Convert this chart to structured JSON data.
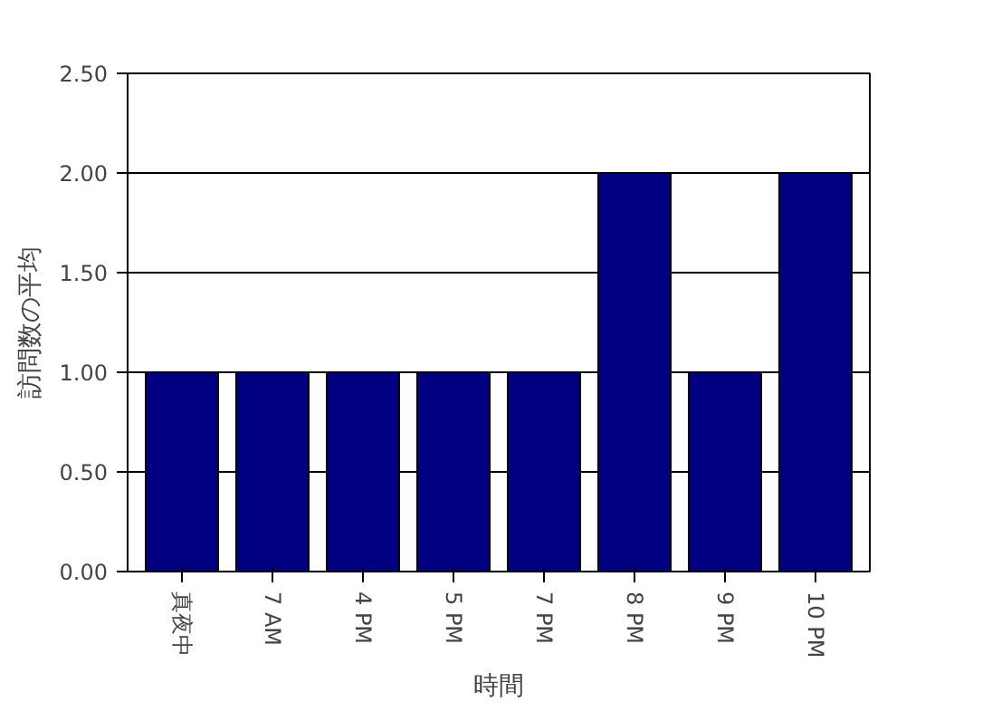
{
  "chart_data": {
    "type": "bar",
    "xlabel": "時間",
    "ylabel": "訪問数の平均",
    "categories": [
      "真夜中",
      "7 AM",
      "4 PM",
      "5 PM",
      "7 PM",
      "8 PM",
      "9 PM",
      "10 PM"
    ],
    "values": [
      1.0,
      1.0,
      1.0,
      1.0,
      1.0,
      2.0,
      1.0,
      2.0
    ],
    "color": "#000080",
    "ylim": [
      0,
      2.5
    ],
    "yticks": [
      {
        "value": 0,
        "label": "0.00"
      },
      {
        "value": 0.5,
        "label": "0.50"
      },
      {
        "value": 1,
        "label": "1.00"
      },
      {
        "value": 1.5,
        "label": "1.50"
      },
      {
        "value": 2,
        "label": "2.00"
      },
      {
        "value": 2.5,
        "label": "2.50"
      }
    ],
    "grid": "y"
  }
}
